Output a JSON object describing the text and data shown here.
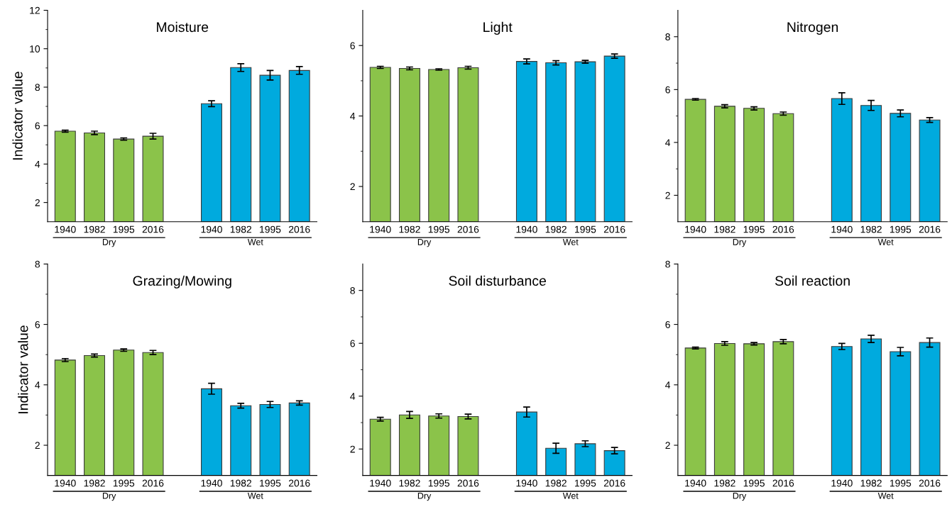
{
  "chart_data": [
    {
      "type": "bar",
      "title": "Moisture",
      "ylabel": "Indicator value",
      "categories": [
        "1940",
        "1982",
        "1995",
        "2016",
        null,
        "1940",
        "1982",
        "1995",
        "2016"
      ],
      "values": [
        5.71,
        5.62,
        5.3,
        5.45,
        null,
        7.14,
        9.02,
        8.62,
        8.87
      ],
      "errors": [
        0.05,
        0.09,
        0.06,
        0.15,
        null,
        0.15,
        0.2,
        0.25,
        0.2
      ],
      "colors": [
        "#8bc34a",
        "#8bc34a",
        "#8bc34a",
        "#8bc34a",
        null,
        "#00aade",
        "#00aade",
        "#00aade",
        "#00aade"
      ],
      "ylim": [
        1,
        12
      ],
      "yticks": [
        2,
        {
          "value": 3,
          "label": null
        },
        4,
        {
          "value": 5,
          "label": null
        },
        6,
        {
          "value": 7,
          "label": null
        },
        8,
        {
          "value": 9,
          "label": null
        },
        10,
        {
          "value": 11,
          "label": null
        },
        12
      ],
      "annotations": [
        "Dry",
        "Wet"
      ]
    },
    {
      "type": "bar",
      "title": "Light",
      "categories": [
        "1940",
        "1982",
        "1995",
        "2016",
        null,
        "1940",
        "1982",
        "1995",
        "2016"
      ],
      "values": [
        5.38,
        5.35,
        5.32,
        5.37,
        null,
        5.55,
        5.51,
        5.54,
        5.7
      ],
      "errors": [
        0.03,
        0.04,
        0.02,
        0.04,
        null,
        0.07,
        0.06,
        0.04,
        0.06
      ],
      "colors": [
        "#8bc34a",
        "#8bc34a",
        "#8bc34a",
        "#8bc34a",
        null,
        "#00aade",
        "#00aade",
        "#00aade",
        "#00aade"
      ],
      "ylim": [
        1,
        7
      ],
      "yticks": [
        2,
        {
          "value": 3,
          "label": null
        },
        4,
        {
          "value": 5,
          "label": null
        },
        6
      ],
      "annotations": [
        "Dry",
        "Wet"
      ]
    },
    {
      "type": "bar",
      "title": "Nitrogen",
      "categories": [
        "1940",
        "1982",
        "1995",
        "2016",
        null,
        "1940",
        "1982",
        "1995",
        "2016"
      ],
      "values": [
        5.63,
        5.37,
        5.29,
        5.09,
        null,
        5.66,
        5.4,
        5.1,
        4.85
      ],
      "errors": [
        0.03,
        0.06,
        0.06,
        0.06,
        null,
        0.22,
        0.19,
        0.13,
        0.09
      ],
      "colors": [
        "#8bc34a",
        "#8bc34a",
        "#8bc34a",
        "#8bc34a",
        null,
        "#00aade",
        "#00aade",
        "#00aade",
        "#00aade"
      ],
      "ylim": [
        1,
        9
      ],
      "yticks": [
        2,
        {
          "value": 3,
          "label": null
        },
        4,
        {
          "value": 5,
          "label": null
        },
        6,
        {
          "value": 7,
          "label": null
        },
        8
      ],
      "annotations": [
        "Dry",
        "Wet"
      ]
    },
    {
      "type": "bar",
      "title": "Grazing/Mowing",
      "ylabel": "Indicator value",
      "categories": [
        "1940",
        "1982",
        "1995",
        "2016",
        null,
        "1940",
        "1982",
        "1995",
        "2016"
      ],
      "values": [
        4.82,
        4.97,
        5.15,
        5.07,
        null,
        3.87,
        3.31,
        3.35,
        3.4
      ],
      "errors": [
        0.05,
        0.05,
        0.04,
        0.07,
        null,
        0.18,
        0.08,
        0.1,
        0.07
      ],
      "colors": [
        "#8bc34a",
        "#8bc34a",
        "#8bc34a",
        "#8bc34a",
        null,
        "#00aade",
        "#00aade",
        "#00aade",
        "#00aade"
      ],
      "ylim": [
        1,
        8
      ],
      "yticks": [
        2,
        {
          "value": 3,
          "label": null
        },
        4,
        {
          "value": 5,
          "label": null
        },
        6,
        {
          "value": 7,
          "label": null
        },
        8
      ],
      "annotations": [
        "Dry",
        "Wet"
      ]
    },
    {
      "type": "bar",
      "title": "Soil disturbance",
      "categories": [
        "1940",
        "1982",
        "1995",
        "2016",
        null,
        "1940",
        "1982",
        "1995",
        "2016"
      ],
      "values": [
        3.13,
        3.29,
        3.25,
        3.23,
        null,
        3.4,
        2.03,
        2.2,
        1.94
      ],
      "errors": [
        0.07,
        0.13,
        0.08,
        0.09,
        null,
        0.19,
        0.19,
        0.11,
        0.12
      ],
      "colors": [
        "#8bc34a",
        "#8bc34a",
        "#8bc34a",
        "#8bc34a",
        null,
        "#00aade",
        "#00aade",
        "#00aade",
        "#00aade"
      ],
      "ylim": [
        1,
        9
      ],
      "yticks": [
        2,
        {
          "value": 3,
          "label": null
        },
        4,
        {
          "value": 5,
          "label": null
        },
        6,
        {
          "value": 7,
          "label": null
        },
        8
      ],
      "annotations": [
        "Dry",
        "Wet"
      ]
    },
    {
      "type": "bar",
      "title": "Soil reaction",
      "categories": [
        "1940",
        "1982",
        "1995",
        "2016",
        null,
        "1940",
        "1982",
        "1995",
        "2016"
      ],
      "values": [
        5.22,
        5.37,
        5.36,
        5.43,
        null,
        5.27,
        5.52,
        5.1,
        5.4
      ],
      "errors": [
        0.03,
        0.06,
        0.04,
        0.07,
        null,
        0.1,
        0.12,
        0.14,
        0.15
      ],
      "colors": [
        "#8bc34a",
        "#8bc34a",
        "#8bc34a",
        "#8bc34a",
        null,
        "#00aade",
        "#00aade",
        "#00aade",
        "#00aade"
      ],
      "ylim": [
        1,
        8
      ],
      "yticks": [
        2,
        {
          "value": 3,
          "label": null
        },
        4,
        {
          "value": 5,
          "label": null
        },
        6,
        {
          "value": 7,
          "label": null
        },
        8
      ],
      "annotations": [
        "Dry",
        "Wet"
      ]
    }
  ]
}
